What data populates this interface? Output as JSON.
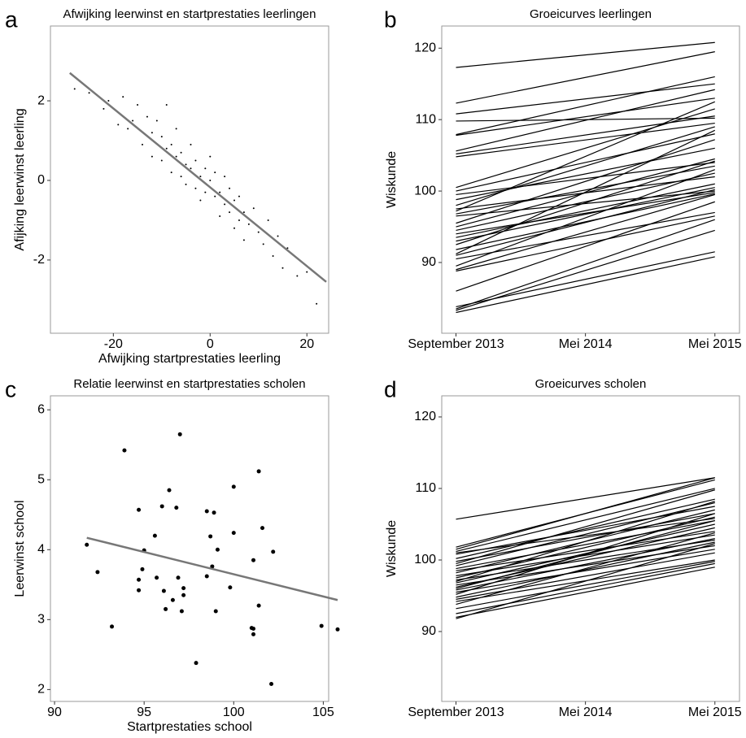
{
  "chart_data": [
    {
      "type": "scatter",
      "panel_label": "a",
      "title": "Afwijking leerwinst en startprestaties leerlingen",
      "x_label": "Afwijking startprestaties leerling",
      "y_label": "Afijking leerwinst leerling",
      "xlim": [
        -33,
        24.5
      ],
      "ylim": [
        -3.84,
        3.88
      ],
      "xticks": [
        -20,
        0,
        20
      ],
      "yticks": [
        -2,
        0,
        2
      ],
      "color": "#000000",
      "points": {
        "x": [
          -28,
          -25,
          -22,
          -21,
          -19,
          -18,
          -17,
          -16,
          -15,
          -14,
          -13,
          -12,
          -12,
          -11,
          -10,
          -10,
          -9,
          -9,
          -8,
          -8,
          -7,
          -7,
          -6,
          -6,
          -5,
          -5,
          -4,
          -4,
          -3,
          -3,
          -2,
          -2,
          -1,
          -1,
          0,
          0,
          1,
          1,
          2,
          2,
          3,
          3,
          4,
          4,
          5,
          5,
          6,
          6,
          7,
          7,
          8,
          9,
          10,
          11,
          12,
          13,
          14,
          15,
          16,
          18,
          20,
          22
        ],
        "y": [
          2.3,
          2.2,
          1.8,
          2.0,
          1.4,
          2.1,
          1.3,
          1.5,
          1.9,
          0.9,
          1.6,
          1.2,
          0.6,
          1.5,
          0.5,
          1.1,
          0.8,
          1.9,
          0.2,
          0.9,
          0.6,
          1.3,
          0.1,
          0.7,
          0.4,
          -0.1,
          0.3,
          0.9,
          -0.2,
          0.5,
          0.1,
          -0.5,
          0.3,
          -0.3,
          0.0,
          0.6,
          -0.4,
          0.2,
          -0.3,
          -0.9,
          0.1,
          -0.6,
          -0.8,
          -0.2,
          -0.5,
          -1.2,
          -0.4,
          -1.0,
          -0.8,
          -1.5,
          -1.1,
          -0.7,
          -1.3,
          -1.6,
          -1.0,
          -1.9,
          -1.4,
          -2.2,
          -1.7,
          -2.4,
          -2.3,
          -3.1
        ]
      },
      "fit_line": {
        "x": [
          -29,
          24
        ],
        "y": [
          2.7,
          -2.55
        ],
        "color": "#777777"
      }
    },
    {
      "type": "line",
      "panel_label": "b",
      "title": "Groeicurves leerlingen",
      "y_label": "Wiskunde",
      "xlim": [
        -0.11,
        2.19
      ],
      "ylim": [
        80.1,
        123.1
      ],
      "xticks": [
        {
          "value": 0,
          "label": "September 2013"
        },
        {
          "value": 1,
          "label": "Mei 2014"
        },
        {
          "value": 2,
          "label": "Mei 2015"
        }
      ],
      "yticks": [
        90,
        100,
        110,
        120
      ],
      "color": "#000000",
      "x": [
        0,
        2
      ],
      "series": [
        {
          "values": [
            117.3,
            120.8
          ]
        },
        {
          "values": [
            112.3,
            119.5
          ]
        },
        {
          "values": [
            110.8,
            115
          ]
        },
        {
          "values": [
            109.8,
            110.2
          ]
        },
        {
          "values": [
            107.9,
            116
          ]
        },
        {
          "values": [
            107.8,
            113
          ]
        },
        {
          "values": [
            105.6,
            114.2
          ]
        },
        {
          "values": [
            105.2,
            110.5
          ]
        },
        {
          "values": [
            104.8,
            109.5
          ]
        },
        {
          "values": [
            100.5,
            111.5
          ]
        },
        {
          "values": [
            100,
            108
          ]
        },
        {
          "values": [
            99.5,
            104
          ]
        },
        {
          "values": [
            98.8,
            106
          ]
        },
        {
          "values": [
            98,
            109
          ]
        },
        {
          "values": [
            97.5,
            102
          ]
        },
        {
          "values": [
            97.2,
            112.5
          ]
        },
        {
          "values": [
            96.8,
            103.5
          ]
        },
        {
          "values": [
            96.5,
            100
          ]
        },
        {
          "values": [
            95.5,
            107.2
          ]
        },
        {
          "values": [
            95,
            104.5
          ]
        },
        {
          "values": [
            94.5,
            102.5
          ]
        },
        {
          "values": [
            94,
            99.8
          ]
        },
        {
          "values": [
            93.5,
            101
          ]
        },
        {
          "values": [
            93,
            100.5
          ]
        },
        {
          "values": [
            92.5,
            104.2
          ]
        },
        {
          "values": [
            91.8,
            99.6
          ]
        },
        {
          "values": [
            91.2,
            108.5
          ]
        },
        {
          "values": [
            91,
            100.2
          ]
        },
        {
          "values": [
            90.5,
            97
          ]
        },
        {
          "values": [
            89.5,
            103
          ]
        },
        {
          "values": [
            89,
            99.5
          ]
        },
        {
          "values": [
            88.8,
            96.5
          ]
        },
        {
          "values": [
            86,
            98.5
          ]
        },
        {
          "values": [
            83.8,
            91.5
          ]
        },
        {
          "values": [
            83.5,
            96
          ]
        },
        {
          "values": [
            83,
            90.8
          ]
        },
        {
          "values": [
            83.3,
            94.5
          ]
        }
      ]
    },
    {
      "type": "scatter",
      "panel_label": "c",
      "title": "Relatie leerwinst en startprestaties scholen",
      "x_label": "Startprestaties school",
      "y_label": "Leerwinst school",
      "xlim": [
        89.77,
        105.3
      ],
      "ylim": [
        1.83,
        6.2
      ],
      "xticks": [
        90,
        95,
        100,
        105
      ],
      "yticks": [
        2,
        3,
        4,
        5,
        6
      ],
      "color": "#000000",
      "points": {
        "x": [
          91.8,
          92.4,
          93.2,
          93.9,
          94.7,
          94.7,
          94.7,
          94.9,
          95,
          95.6,
          95.7,
          96,
          96.1,
          96.2,
          96.4,
          96.6,
          96.8,
          96.9,
          97,
          97.1,
          97.2,
          97.2,
          97.9,
          98.5,
          98.5,
          98.7,
          98.8,
          98.9,
          99,
          99.1,
          99.8,
          100,
          100,
          101,
          101.1,
          101.1,
          101.1,
          101.4,
          101.4,
          101.6,
          102.1,
          102.2,
          104.9,
          105.8
        ],
        "y": [
          4.07,
          3.68,
          2.9,
          5.42,
          4.57,
          3.57,
          3.42,
          3.72,
          3.99,
          4.2,
          3.6,
          4.62,
          3.41,
          3.15,
          4.85,
          3.28,
          4.6,
          3.6,
          5.65,
          3.12,
          3.35,
          3.45,
          2.38,
          4.55,
          3.62,
          4.19,
          3.76,
          4.53,
          3.12,
          4.0,
          3.46,
          4.9,
          4.24,
          2.88,
          2.87,
          3.85,
          2.79,
          3.2,
          5.12,
          4.31,
          2.08,
          3.97,
          2.91,
          2.86
        ]
      },
      "fit_line": {
        "x": [
          91.8,
          105.8
        ],
        "y": [
          4.17,
          3.28
        ],
        "color": "#777777"
      }
    },
    {
      "type": "line",
      "panel_label": "d",
      "title": "Groeicurves scholen",
      "y_label": "Wiskunde",
      "xlim": [
        -0.11,
        2.19
      ],
      "ylim": [
        80.23,
        122.95
      ],
      "xticks": [
        {
          "value": 0,
          "label": "September 2013"
        },
        {
          "value": 1,
          "label": "Mei 2014"
        },
        {
          "value": 2,
          "label": "Mei 2015"
        }
      ],
      "yticks": [
        90,
        100,
        110,
        120
      ],
      "color": "#000000",
      "x": [
        0,
        2
      ],
      "series": [
        {
          "values": [
            101.5,
            111.5
          ]
        },
        {
          "values": [
            101.8,
            111.2
          ]
        },
        {
          "values": [
            101.2,
            110
          ]
        },
        {
          "values": [
            100.8,
            107.5
          ]
        },
        {
          "values": [
            100.2,
            108.5
          ]
        },
        {
          "values": [
            99.8,
            106.5
          ]
        },
        {
          "values": [
            99.5,
            109.8
          ]
        },
        {
          "values": [
            99.2,
            108
          ]
        },
        {
          "values": [
            98.8,
            105.5
          ]
        },
        {
          "values": [
            98.5,
            104
          ]
        },
        {
          "values": [
            98.2,
            107
          ]
        },
        {
          "values": [
            97.8,
            103.5
          ]
        },
        {
          "values": [
            97.5,
            106
          ]
        },
        {
          "values": [
            97.2,
            102.8
          ]
        },
        {
          "values": [
            96.8,
            105
          ]
        },
        {
          "values": [
            96.5,
            102
          ]
        },
        {
          "values": [
            96.2,
            104.5
          ]
        },
        {
          "values": [
            95.8,
            103
          ]
        },
        {
          "values": [
            95.5,
            101.5
          ]
        },
        {
          "values": [
            95.2,
            106.5
          ]
        },
        {
          "values": [
            94.8,
            102.5
          ]
        },
        {
          "values": [
            94.5,
            101
          ]
        },
        {
          "values": [
            94.2,
            100
          ]
        },
        {
          "values": [
            93.8,
            103.8
          ]
        },
        {
          "values": [
            93.2,
            99.8
          ]
        },
        {
          "values": [
            92.5,
            99.5
          ]
        },
        {
          "values": [
            92,
            99
          ]
        },
        {
          "values": [
            91.8,
            102.3
          ]
        },
        {
          "values": [
            105.7,
            111.5
          ]
        },
        {
          "values": [
            101,
            105.8
          ]
        },
        {
          "values": [
            97,
            108.2
          ]
        },
        {
          "values": [
            96,
            105.5
          ]
        }
      ]
    }
  ]
}
